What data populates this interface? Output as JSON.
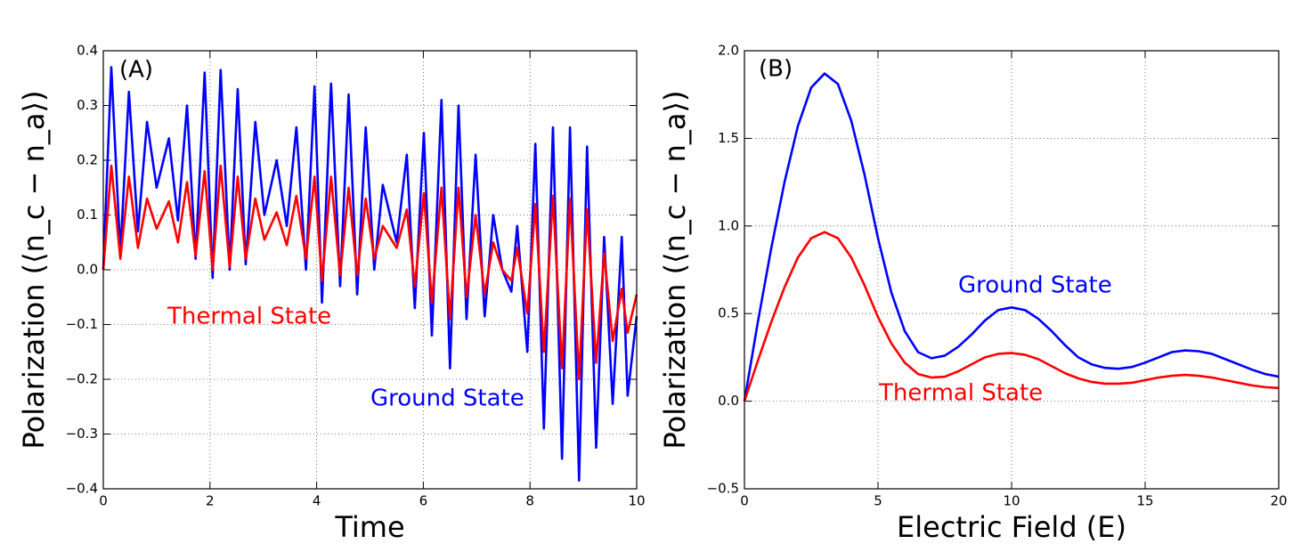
{
  "chart_data": [
    {
      "type": "line",
      "x_label": "Time",
      "y_label": "Polarization (⟨n_c − n_a⟩)",
      "annotations": [
        "(A)"
      ],
      "xlim": [
        0,
        10
      ],
      "xticks": [
        0,
        2,
        4,
        6,
        8,
        10
      ],
      "ylim": [
        -0.4,
        0.4
      ],
      "yticks": [
        {
          "value": -0.4,
          "label": "−0.4"
        },
        {
          "value": -0.3,
          "label": "−0.3"
        },
        {
          "value": -0.2,
          "label": "−0.2"
        },
        {
          "value": -0.1,
          "label": "−0.1"
        },
        {
          "value": 0,
          "label": "0.0"
        },
        0.1,
        0.2,
        0.3,
        0.4
      ],
      "grid": true,
      "x": [
        0,
        0.15,
        0.32,
        0.48,
        0.65,
        0.82,
        1.0,
        1.23,
        1.4,
        1.57,
        1.73,
        1.9,
        2.05,
        2.2,
        2.37,
        2.52,
        2.67,
        2.85,
        3.02,
        3.25,
        3.44,
        3.62,
        3.8,
        3.96,
        4.1,
        4.27,
        4.44,
        4.6,
        4.76,
        4.92,
        5.08,
        5.24,
        5.5,
        5.69,
        5.84,
        6.01,
        6.16,
        6.34,
        6.5,
        6.66,
        6.81,
        6.98,
        7.15,
        7.31,
        7.48,
        7.65,
        7.76,
        7.95,
        8.1,
        8.26,
        8.43,
        8.6,
        8.75,
        8.92,
        9.07,
        9.24,
        9.39,
        9.55,
        9.72,
        9.83,
        10
      ],
      "series": [
        {
          "name": "Ground State",
          "color": "#0000ff",
          "values": [
            0,
            0.37,
            0.03,
            0.325,
            0.07,
            0.27,
            0.15,
            0.24,
            0.09,
            0.3,
            0.02,
            0.36,
            -0.015,
            0.365,
            0.0,
            0.33,
            0.01,
            0.27,
            0.1,
            0.2,
            0.08,
            0.26,
            0.0,
            0.335,
            -0.06,
            0.34,
            -0.03,
            0.32,
            -0.045,
            0.26,
            0.0,
            0.155,
            0.05,
            0.21,
            -0.07,
            0.25,
            -0.12,
            0.31,
            -0.18,
            0.3,
            -0.09,
            0.21,
            -0.085,
            0.1,
            0.0,
            -0.04,
            0.08,
            -0.15,
            0.23,
            -0.29,
            0.26,
            -0.345,
            0.26,
            -0.385,
            0.225,
            -0.325,
            0.06,
            -0.245,
            0.06,
            -0.23,
            -0.085
          ]
        },
        {
          "name": "Thermal State",
          "color": "#ff0000",
          "values": [
            0,
            0.19,
            0.02,
            0.17,
            0.04,
            0.13,
            0.075,
            0.125,
            0.05,
            0.16,
            0.025,
            0.18,
            0.0,
            0.19,
            0.005,
            0.17,
            0.02,
            0.13,
            0.055,
            0.105,
            0.045,
            0.135,
            0.02,
            0.17,
            -0.02,
            0.17,
            -0.01,
            0.15,
            -0.01,
            0.13,
            0.02,
            0.08,
            0.04,
            0.11,
            -0.03,
            0.14,
            -0.06,
            0.15,
            -0.09,
            0.15,
            -0.05,
            0.1,
            -0.045,
            0.05,
            0.0,
            -0.02,
            0.04,
            -0.08,
            0.12,
            -0.15,
            0.135,
            -0.18,
            0.13,
            -0.2,
            0.11,
            -0.17,
            0.03,
            -0.13,
            -0.035,
            -0.115,
            -0.045
          ]
        }
      ]
    },
    {
      "type": "line",
      "x_label": "Electric Field (E)",
      "y_label": "Polarization (⟨n_c − n_a⟩)",
      "annotations": [
        "(B)"
      ],
      "xlim": [
        0,
        20
      ],
      "xticks": [
        0,
        5,
        10,
        15,
        20
      ],
      "ylim": [
        -0.5,
        2.0
      ],
      "yticks": [
        {
          "value": -0.5,
          "label": "−0.5"
        },
        {
          "value": 0,
          "label": "0.0"
        },
        0.5,
        {
          "value": 1,
          "label": "1.0"
        },
        1.5,
        {
          "value": 2,
          "label": "2.0"
        }
      ],
      "grid": true,
      "x": [
        0,
        0.5,
        1,
        1.5,
        2,
        2.5,
        3,
        3.5,
        4,
        4.5,
        5,
        5.5,
        6,
        6.5,
        7,
        7.5,
        8,
        8.5,
        9,
        9.5,
        10,
        10.5,
        11,
        11.5,
        12,
        12.5,
        13,
        13.5,
        14,
        14.5,
        15,
        15.5,
        16,
        16.5,
        17,
        17.5,
        18,
        18.5,
        19,
        19.5,
        20
      ],
      "series": [
        {
          "name": "Ground State",
          "color": "#0000ff",
          "values": [
            0,
            0.45,
            0.87,
            1.25,
            1.57,
            1.79,
            1.87,
            1.81,
            1.6,
            1.29,
            0.93,
            0.62,
            0.4,
            0.28,
            0.245,
            0.26,
            0.31,
            0.38,
            0.46,
            0.52,
            0.535,
            0.52,
            0.47,
            0.4,
            0.32,
            0.25,
            0.21,
            0.19,
            0.185,
            0.195,
            0.22,
            0.25,
            0.28,
            0.29,
            0.285,
            0.27,
            0.24,
            0.21,
            0.18,
            0.155,
            0.14
          ]
        },
        {
          "name": "Thermal State",
          "color": "#ff0000",
          "values": [
            0,
            0.23,
            0.45,
            0.65,
            0.82,
            0.93,
            0.965,
            0.93,
            0.82,
            0.66,
            0.48,
            0.33,
            0.22,
            0.155,
            0.135,
            0.14,
            0.17,
            0.21,
            0.25,
            0.27,
            0.275,
            0.265,
            0.24,
            0.2,
            0.16,
            0.13,
            0.11,
            0.1,
            0.1,
            0.105,
            0.12,
            0.135,
            0.145,
            0.15,
            0.145,
            0.135,
            0.12,
            0.105,
            0.09,
            0.08,
            0.075
          ]
        }
      ]
    }
  ]
}
